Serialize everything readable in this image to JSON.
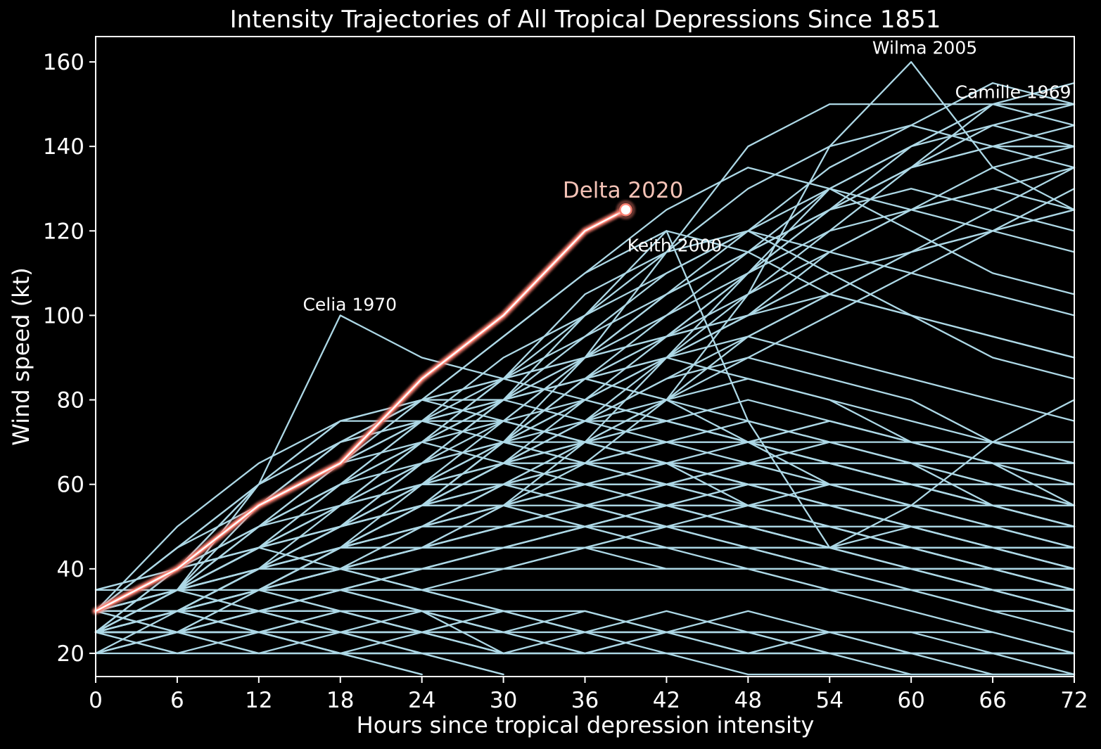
{
  "figure": {
    "title": "Intensity Trajectories of All Tropical Depressions Since 1851",
    "xlabel": "Hours since tropical depression intensity",
    "ylabel": "Wind speed (kt)",
    "background_color": "#000000",
    "axis_color": "#ffffff"
  },
  "chart_data": {
    "type": "line",
    "title": "Intensity Trajectories of All Tropical Depressions Since 1851",
    "xlabel": "Hours since tropical depression intensity",
    "ylabel": "Wind speed (kt)",
    "xlim": [
      0,
      72
    ],
    "ylim": [
      14.5,
      166
    ],
    "x_ticks": [
      0,
      6,
      12,
      18,
      24,
      30,
      36,
      42,
      48,
      54,
      60,
      66,
      72
    ],
    "y_ticks": [
      20,
      40,
      60,
      80,
      100,
      120,
      140,
      160
    ],
    "grid": false,
    "legend": "none",
    "step_hours": 6,
    "ensemble_color": "#ADD8E6",
    "highlight": {
      "name": "Delta 2020",
      "line_color": "#FA8072",
      "core_color": "#FFFFFF",
      "label_color": "#F5C3B7",
      "points": [
        [
          0,
          30
        ],
        [
          6,
          40
        ],
        [
          12,
          55
        ],
        [
          18,
          65
        ],
        [
          24,
          85
        ],
        [
          30,
          100
        ],
        [
          36,
          120
        ],
        [
          39,
          125
        ]
      ]
    },
    "annotations": [
      {
        "text": "Wilma 2005",
        "x": 61.0,
        "y": 163.3,
        "color": "#FFFFFF",
        "emphasis": false
      },
      {
        "text": "Camille 1969",
        "x": 67.5,
        "y": 152.8,
        "color": "#FFFFFF",
        "emphasis": false
      },
      {
        "text": "Delta 2020",
        "x": 38.8,
        "y": 129.5,
        "color": "#F5C3B7",
        "emphasis": true
      },
      {
        "text": "Keith 2000",
        "x": 42.6,
        "y": 116.5,
        "color": "#FFFFFF",
        "emphasis": false
      },
      {
        "text": "Celia 1970",
        "x": 18.7,
        "y": 102.5,
        "color": "#FFFFFF",
        "emphasis": false
      }
    ],
    "labeled_series": [
      {
        "name": "Wilma 2005",
        "values": [
          25,
          30,
          35,
          40,
          45,
          55,
          65,
          80,
          105,
          140,
          160,
          135,
          125
        ]
      },
      {
        "name": "Camille 1969",
        "values": [
          25,
          30,
          35,
          45,
          55,
          70,
          90,
          115,
          140,
          150,
          150,
          150,
          150
        ]
      },
      {
        "name": "Keith 2000",
        "values": [
          25,
          30,
          40,
          50,
          65,
          80,
          100,
          120,
          75,
          45,
          55,
          70,
          80
        ]
      },
      {
        "name": "Celia 1970",
        "values": [
          30,
          35,
          60,
          100,
          90,
          85,
          90,
          95,
          100,
          110
        ]
      }
    ],
    "background_series": [
      [
        25,
        30,
        30,
        25,
        20
      ],
      [
        30,
        30,
        25,
        20
      ],
      [
        25,
        25,
        30,
        30,
        25
      ],
      [
        30,
        35,
        35,
        30,
        25,
        20
      ],
      [
        25,
        30,
        35,
        30,
        25,
        20
      ],
      [
        20,
        25,
        25,
        20,
        20,
        15
      ],
      [
        30,
        25,
        25,
        20,
        15
      ],
      [
        25,
        30,
        25,
        20,
        20,
        15
      ],
      [
        35,
        35,
        30,
        25,
        20
      ],
      [
        25,
        25,
        25,
        30,
        30,
        25
      ],
      [
        30,
        35,
        40,
        40,
        35,
        30
      ],
      [
        25,
        20,
        20,
        20,
        15
      ],
      [
        30,
        30,
        35,
        35,
        30,
        20
      ],
      [
        25,
        30,
        30,
        35,
        30,
        25
      ],
      [
        35,
        40,
        45,
        40,
        35,
        30
      ],
      [
        25,
        25,
        30,
        25,
        25,
        20,
        20
      ],
      [
        30,
        35,
        30,
        30,
        25,
        25,
        20
      ],
      [
        25,
        30,
        35,
        40,
        35,
        30,
        25
      ],
      [
        25,
        30,
        35,
        40,
        45,
        50,
        55,
        55,
        50,
        45,
        40,
        35,
        30
      ],
      [
        30,
        35,
        45,
        50,
        55,
        60,
        60,
        55,
        50,
        45,
        45,
        40,
        40
      ],
      [
        25,
        35,
        40,
        50,
        55,
        55,
        50,
        45,
        45,
        40,
        35,
        35,
        30
      ],
      [
        30,
        40,
        50,
        55,
        60,
        65,
        70,
        65,
        60,
        55,
        50,
        45,
        40
      ],
      [
        25,
        30,
        35,
        40,
        45,
        50,
        55,
        60,
        65,
        70,
        65,
        60,
        55
      ],
      [
        30,
        35,
        40,
        45,
        55,
        60,
        65,
        70,
        75,
        70,
        65,
        55,
        50
      ],
      [
        25,
        30,
        40,
        45,
        50,
        60,
        65,
        60,
        55,
        50,
        45,
        40,
        35
      ],
      [
        30,
        35,
        40,
        50,
        60,
        65,
        70,
        75,
        70,
        60,
        55,
        50,
        45
      ],
      [
        25,
        25,
        30,
        35,
        40,
        45,
        50,
        50,
        45,
        40,
        35,
        30,
        25
      ],
      [
        30,
        30,
        35,
        40,
        45,
        45,
        50,
        55,
        50,
        45,
        40,
        40,
        35
      ],
      [
        25,
        30,
        35,
        35,
        40,
        45,
        45,
        40,
        40,
        35,
        30,
        25,
        20
      ],
      [
        20,
        25,
        30,
        35,
        40,
        40,
        45,
        50,
        55,
        50,
        45,
        40,
        35
      ],
      [
        25,
        35,
        45,
        55,
        60,
        60,
        55,
        50,
        45,
        40,
        40,
        35,
        30
      ],
      [
        30,
        40,
        45,
        50,
        55,
        60,
        55,
        50,
        50,
        45,
        40,
        35,
        35
      ],
      [
        25,
        30,
        35,
        45,
        50,
        55,
        60,
        65,
        60,
        55,
        50,
        45,
        40
      ],
      [
        35,
        40,
        50,
        60,
        65,
        70,
        75,
        75,
        70,
        65,
        60,
        55,
        50
      ],
      [
        25,
        30,
        35,
        40,
        50,
        55,
        60,
        65,
        70,
        75,
        70,
        65,
        60
      ],
      [
        30,
        35,
        40,
        45,
        50,
        55,
        50,
        45,
        40,
        35,
        35,
        30,
        30
      ],
      [
        25,
        30,
        30,
        35,
        40,
        45,
        50,
        55,
        60,
        60,
        55,
        50,
        45
      ],
      [
        30,
        35,
        45,
        55,
        65,
        70,
        65,
        60,
        55,
        55,
        50,
        45,
        40
      ],
      [
        25,
        25,
        30,
        35,
        35,
        40,
        45,
        50,
        50,
        45,
        45,
        40,
        35
      ],
      [
        20,
        25,
        35,
        40,
        45,
        50,
        55,
        55,
        60,
        55,
        50,
        50,
        45
      ],
      [
        25,
        30,
        40,
        50,
        55,
        65,
        70,
        75,
        80,
        75,
        70,
        65,
        60
      ],
      [
        30,
        35,
        40,
        50,
        55,
        65,
        75,
        80,
        85,
        80,
        70,
        65,
        55
      ],
      [
        25,
        30,
        35,
        45,
        55,
        65,
        75,
        85,
        90,
        85,
        80,
        70,
        65
      ],
      [
        30,
        40,
        55,
        65,
        75,
        80,
        85,
        90,
        85,
        80,
        75,
        70,
        65
      ],
      [
        25,
        35,
        50,
        60,
        70,
        75,
        80,
        75,
        70,
        65,
        60,
        55,
        50
      ],
      [
        30,
        45,
        60,
        70,
        75,
        75,
        70,
        65,
        60,
        55,
        50,
        45,
        40
      ],
      [
        25,
        40,
        55,
        65,
        70,
        65,
        60,
        55,
        50,
        45,
        40,
        35,
        30
      ],
      [
        30,
        35,
        50,
        60,
        70,
        80,
        85,
        80,
        75,
        70,
        65,
        60,
        55
      ],
      [
        25,
        30,
        35,
        40,
        50,
        60,
        70,
        80,
        90,
        100,
        110,
        120,
        125
      ],
      [
        30,
        35,
        40,
        50,
        60,
        70,
        85,
        95,
        105,
        115,
        125,
        130,
        135
      ],
      [
        25,
        30,
        40,
        50,
        60,
        70,
        80,
        95,
        110,
        125,
        135,
        140,
        140
      ],
      [
        30,
        35,
        45,
        55,
        65,
        80,
        90,
        105,
        115,
        125,
        135,
        140,
        145
      ],
      [
        25,
        30,
        35,
        45,
        55,
        65,
        80,
        90,
        105,
        120,
        135,
        150,
        155
      ],
      [
        30,
        40,
        50,
        60,
        70,
        85,
        100,
        110,
        120,
        130,
        125,
        120,
        115
      ],
      [
        25,
        35,
        45,
        55,
        70,
        85,
        95,
        110,
        120,
        115,
        110,
        105,
        100
      ],
      [
        30,
        35,
        45,
        60,
        75,
        85,
        105,
        115,
        120,
        110,
        100,
        95,
        90
      ],
      [
        25,
        30,
        40,
        55,
        70,
        80,
        95,
        105,
        115,
        125,
        130,
        125,
        120
      ],
      [
        30,
        40,
        55,
        70,
        80,
        95,
        110,
        120,
        115,
        105,
        100,
        90,
        85
      ],
      [
        25,
        30,
        35,
        45,
        60,
        75,
        90,
        100,
        110,
        120,
        125,
        130,
        125
      ],
      [
        20,
        25,
        35,
        45,
        55,
        70,
        85,
        100,
        115,
        130,
        140,
        145,
        150
      ],
      [
        25,
        35,
        45,
        60,
        75,
        90,
        100,
        115,
        130,
        140,
        145,
        140,
        135
      ],
      [
        30,
        35,
        40,
        45,
        55,
        70,
        85,
        95,
        110,
        125,
        140,
        150,
        145
      ],
      [
        25,
        30,
        40,
        50,
        65,
        80,
        90,
        105,
        120,
        135,
        145,
        155,
        150
      ],
      [
        30,
        40,
        50,
        65,
        80,
        95,
        110,
        125,
        135,
        130,
        120,
        110,
        105
      ],
      [
        25,
        30,
        35,
        40,
        45,
        55,
        70,
        90,
        110,
        130,
        140,
        150,
        150
      ],
      [
        30,
        35,
        45,
        50,
        60,
        70,
        80,
        90,
        100,
        110,
        115,
        120,
        125
      ],
      [
        25,
        30,
        35,
        45,
        50,
        60,
        70,
        80,
        95,
        105,
        115,
        125,
        135
      ],
      [
        30,
        35,
        40,
        50,
        55,
        65,
        75,
        90,
        100,
        115,
        125,
        135,
        140
      ],
      [
        25,
        30,
        40,
        45,
        55,
        65,
        75,
        85,
        95,
        105,
        115,
        120,
        130
      ],
      [
        20,
        30,
        40,
        50,
        65,
        75,
        90,
        105,
        115,
        125,
        135,
        145,
        140
      ],
      [
        30,
        45,
        60,
        70,
        75,
        75,
        70,
        65,
        60,
        55,
        50,
        45,
        40
      ],
      [
        25,
        40,
        55,
        70,
        80,
        80,
        75,
        70,
        65,
        60,
        55,
        50,
        45
      ],
      [
        30,
        50,
        65,
        75,
        80,
        75,
        70,
        65,
        55,
        50,
        45,
        40,
        35
      ],
      [
        25,
        40,
        60,
        75,
        75,
        70,
        65,
        60,
        55,
        50,
        45,
        40,
        40
      ],
      [
        30,
        45,
        55,
        65,
        75,
        80,
        85,
        90,
        95,
        90,
        85,
        80,
        75
      ],
      [
        25,
        35,
        55,
        70,
        80,
        85,
        90,
        95,
        100,
        105,
        100,
        95,
        90
      ],
      [
        30,
        40,
        60,
        75,
        80,
        85,
        80,
        75,
        70,
        65,
        60,
        55,
        50
      ],
      [
        25,
        35,
        50,
        65,
        75,
        80,
        85,
        80,
        70,
        65,
        60,
        55,
        50
      ],
      [
        25,
        20,
        20,
        20,
        20,
        20,
        20,
        20,
        20,
        20,
        20,
        20,
        20
      ],
      [
        30,
        25,
        20,
        20,
        20,
        20,
        20,
        20,
        15,
        15,
        15,
        15,
        15
      ],
      [
        25,
        25,
        20,
        25,
        25,
        20,
        20,
        25,
        20,
        20,
        15,
        15,
        15
      ],
      [
        20,
        20,
        25,
        25,
        20,
        20,
        25,
        25,
        20,
        20,
        20,
        15,
        15
      ],
      [
        25,
        30,
        25,
        25,
        30,
        25,
        25,
        20,
        20,
        25,
        20,
        20,
        20
      ],
      [
        30,
        25,
        25,
        30,
        30,
        25,
        20,
        25,
        25,
        20,
        20,
        20,
        15
      ],
      [
        25,
        30,
        30,
        25,
        25,
        30,
        30,
        25,
        25,
        20,
        20,
        20,
        20
      ],
      [
        20,
        25,
        30,
        30,
        25,
        25,
        30,
        25,
        25,
        25,
        20,
        20,
        20
      ],
      [
        25,
        25,
        30,
        35,
        30,
        30,
        25,
        30,
        25,
        25,
        25,
        20,
        20
      ],
      [
        30,
        30,
        25,
        20,
        25,
        30,
        25,
        25,
        30,
        25,
        25,
        25,
        20
      ],
      [
        30,
        35,
        40,
        40,
        40,
        40,
        40,
        40,
        40,
        40,
        40,
        40,
        40
      ],
      [
        25,
        30,
        35,
        35,
        35,
        35,
        35,
        35,
        35,
        35,
        35,
        35,
        35
      ],
      [
        30,
        35,
        40,
        45,
        45,
        45,
        45,
        45,
        45,
        45,
        45,
        45,
        45
      ],
      [
        25,
        30,
        40,
        45,
        50,
        50,
        50,
        50,
        50,
        50,
        50,
        50,
        50
      ],
      [
        30,
        40,
        45,
        50,
        55,
        55,
        55,
        55,
        55,
        55,
        55,
        55,
        55
      ],
      [
        25,
        35,
        40,
        45,
        50,
        55,
        60,
        60,
        60,
        60,
        60,
        60,
        60
      ],
      [
        30,
        35,
        45,
        55,
        60,
        65,
        65,
        65,
        65,
        65,
        65,
        65,
        65
      ],
      [
        25,
        30,
        40,
        50,
        60,
        70,
        70,
        70,
        70,
        70,
        70,
        70,
        70
      ],
      [
        25,
        30,
        35,
        40,
        40,
        45,
        50,
        55,
        55,
        60,
        60,
        55,
        55
      ],
      [
        30,
        30,
        35,
        45,
        50,
        55,
        60,
        60,
        65,
        65,
        60,
        60,
        55
      ],
      [
        25,
        35,
        40,
        40,
        45,
        50,
        50,
        55,
        50,
        50,
        45,
        45,
        40
      ],
      [
        30,
        35,
        35,
        40,
        45,
        50,
        55,
        50,
        45,
        45,
        50,
        45,
        45
      ],
      [
        25,
        30,
        40,
        45,
        45,
        50,
        55,
        60,
        65,
        60,
        60,
        55,
        50
      ],
      [
        30,
        40,
        45,
        55,
        60,
        60,
        65,
        70,
        70,
        75,
        70,
        70,
        65
      ]
    ]
  }
}
